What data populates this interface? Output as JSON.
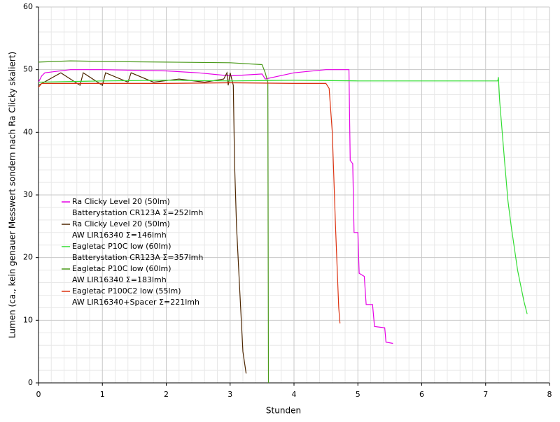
{
  "chart_data": {
    "type": "line",
    "y_label": "Lumen (ca., kein genauer Messwert sondern nach Ra Clicky skaliert)",
    "x_label": "Stunden",
    "xlim": [
      0,
      8
    ],
    "xticks": [
      0,
      1,
      2,
      3,
      4,
      5,
      6,
      7,
      8
    ],
    "ylim": [
      0,
      60
    ],
    "yticks": [
      0,
      10,
      20,
      30,
      40,
      50,
      60
    ],
    "grid": true,
    "series": [
      {
        "name": [
          "Ra Clicky Level 20 (50lm)",
          "Batterystation CR123A  Σ=252lmh"
        ],
        "color": "#e600e6",
        "x": [
          0,
          0.05,
          0.1,
          0.5,
          1,
          2,
          2.5,
          3,
          3.5,
          3.55,
          4.0,
          4.5,
          4.86,
          4.88,
          4.92,
          4.94,
          5.0,
          5.02,
          5.1,
          5.13,
          5.23,
          5.26,
          5.42,
          5.44,
          5.55
        ],
        "values": [
          48,
          49,
          49.5,
          50,
          50,
          49.8,
          49.5,
          49,
          49.3,
          48.5,
          49.5,
          50,
          50,
          35.5,
          35,
          24,
          24,
          17.5,
          17,
          12.5,
          12.5,
          9,
          8.8,
          6.5,
          6.3
        ]
      },
      {
        "name": [
          "Ra Clicky Level 20 (50lm)",
          "AW LIR16340  Σ=146lmh"
        ],
        "color": "#4d2600",
        "x": [
          0,
          0.35,
          0.65,
          0.7,
          1.0,
          1.05,
          1.4,
          1.45,
          1.8,
          2.2,
          2.6,
          2.9,
          2.95,
          2.97,
          3.0,
          3.05,
          3.07,
          3.1,
          3.15,
          3.2,
          3.25
        ],
        "values": [
          47.5,
          49.5,
          47.5,
          49.5,
          47.5,
          49.5,
          48,
          49.5,
          48,
          48.5,
          48,
          48.5,
          49.5,
          47.5,
          49.5,
          47.5,
          35,
          25,
          15,
          5,
          1.5
        ]
      },
      {
        "name": [
          "Eagletac P10C low (60lm)",
          "Batterystation CR123A  Σ=357lmh"
        ],
        "color": "#33dd33",
        "x": [
          0,
          1,
          2,
          3,
          4,
          5,
          6,
          7.19,
          7.2,
          7.22,
          7.3,
          7.35,
          7.4,
          7.5,
          7.6,
          7.65
        ],
        "values": [
          48,
          48.2,
          48.3,
          48.2,
          48.3,
          48.2,
          48.2,
          48.2,
          48.8,
          45,
          35,
          29,
          25,
          18,
          13,
          11
        ]
      },
      {
        "name": [
          "Eagletac P10C low (60lm)",
          "AW LIR16340  Σ=183lmh"
        ],
        "color": "#4a9a1a",
        "x": [
          0,
          0.5,
          1,
          2,
          3,
          3.5,
          3.55,
          3.59,
          3.6
        ],
        "values": [
          51.2,
          51.4,
          51.3,
          51.2,
          51.1,
          50.8,
          49.5,
          48,
          0
        ]
      },
      {
        "name": [
          "Eagletac P100C2 low (55lm)",
          "AW LIR16340+Spacer  Σ=221lmh"
        ],
        "color": "#dd3311",
        "x": [
          0,
          0.05,
          1,
          2,
          3,
          4,
          4.5,
          4.55,
          4.6,
          4.65,
          4.7,
          4.72
        ],
        "values": [
          47.2,
          47.8,
          47.8,
          47.8,
          47.9,
          47.8,
          47.8,
          47,
          40,
          25,
          12,
          9.5
        ]
      }
    ]
  }
}
